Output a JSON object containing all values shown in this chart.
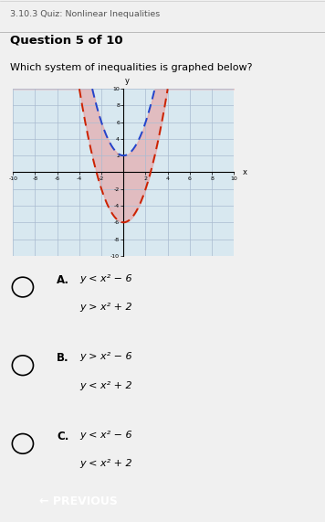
{
  "title": "3.10.3 Quiz: Nonlinear Inequalities",
  "question": "Question 5 of 10",
  "prompt": "Which system of inequalities is graphed below?",
  "xlim": [
    -10,
    10
  ],
  "ylim": [
    -10,
    10
  ],
  "xticks": [
    -10,
    -8,
    -6,
    -4,
    -2,
    2,
    4,
    6,
    8,
    10
  ],
  "yticks": [
    -10,
    -8,
    -6,
    -4,
    -2,
    2,
    4,
    6,
    8,
    10
  ],
  "parabola1_k": -6,
  "parabola1_color": "#cc2200",
  "parabola2_k": 2,
  "parabola2_color": "#2244cc",
  "shade_color": "#e8a0a0",
  "shade_alpha": 0.6,
  "grid_color": "#aabbd0",
  "plot_bg": "#d8e8f0",
  "answer_A_1": "y < x² − 6",
  "answer_A_2": "y > x² + 2",
  "answer_B_1": "y > x² − 6",
  "answer_B_2": "y < x² + 2",
  "answer_C_1": "y < x² − 6",
  "answer_C_2": "y < x² + 2",
  "button_text": "← PREVIOUS",
  "button_color": "#2299cc",
  "page_bg": "#f0f0f0",
  "header_bg": "#ffffff"
}
